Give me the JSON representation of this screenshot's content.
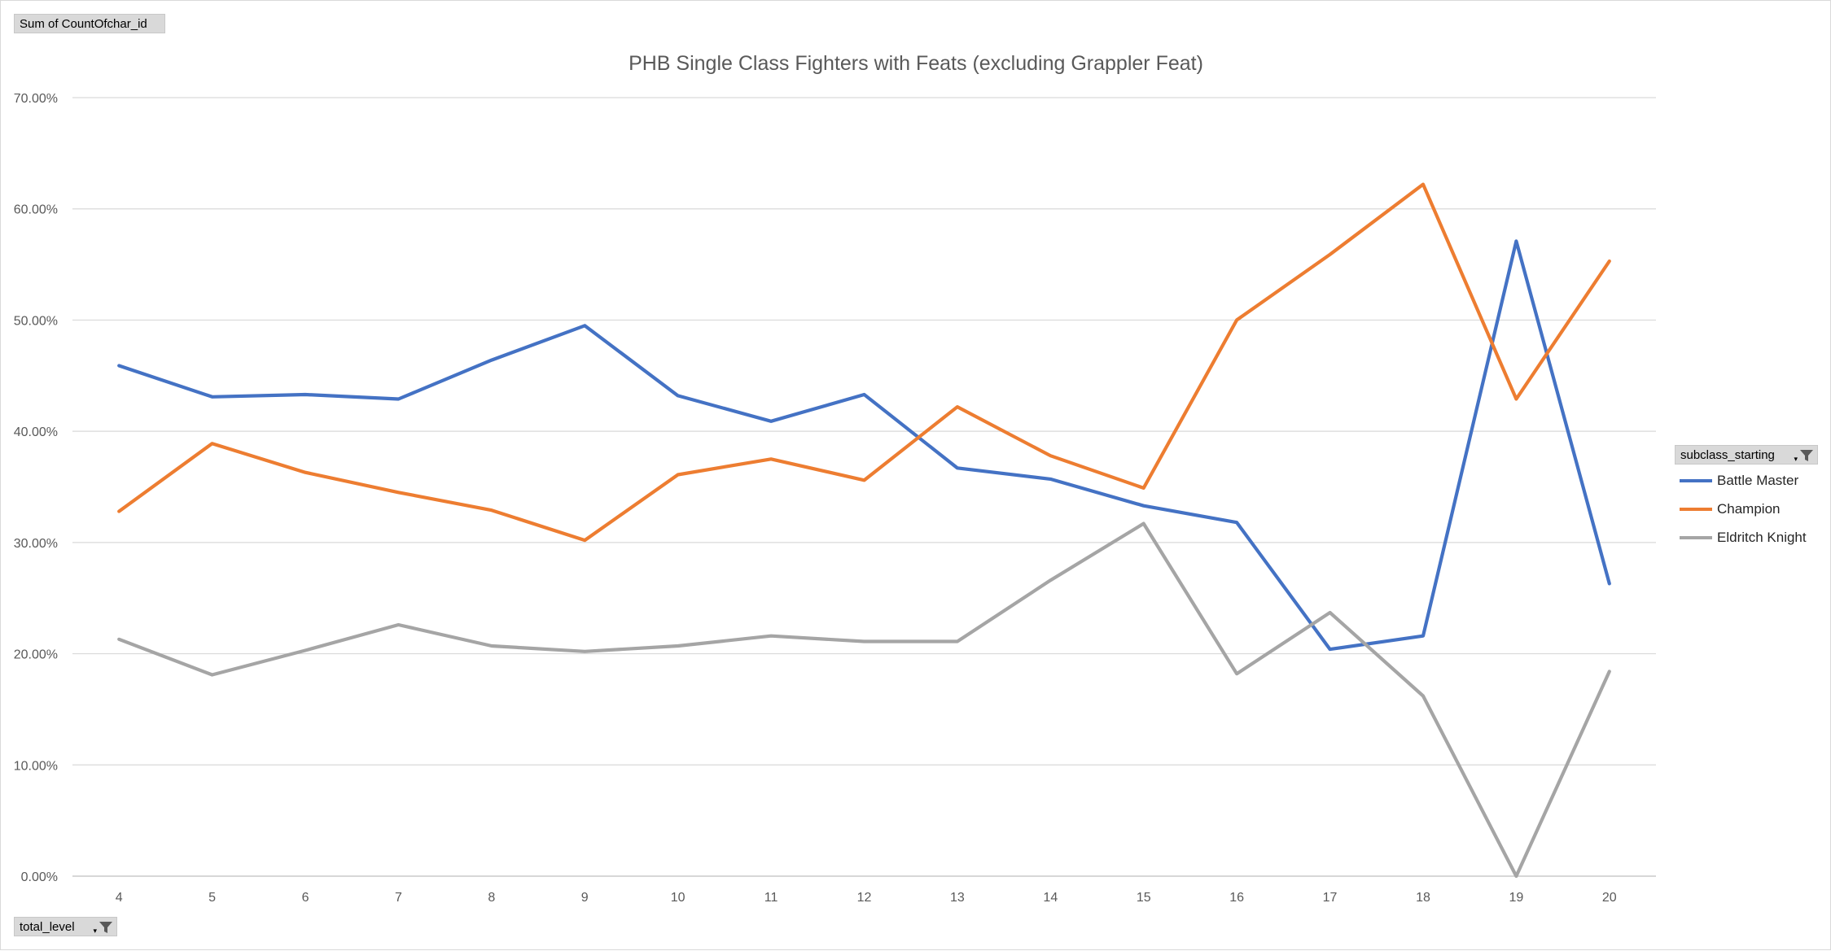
{
  "field_buttons": {
    "values_field": "Sum of CountOfchar_id",
    "axis_field": "total_level",
    "legend_field": "subclass_starting"
  },
  "chart_data": {
    "type": "line",
    "title": "PHB Single Class Fighters with Feats (excluding Grappler Feat)",
    "xlabel": "",
    "ylabel": "",
    "categories": [
      "4",
      "5",
      "6",
      "7",
      "8",
      "9",
      "10",
      "11",
      "12",
      "13",
      "14",
      "15",
      "16",
      "17",
      "18",
      "19",
      "20"
    ],
    "ylim": [
      0,
      70
    ],
    "yticks": [
      0,
      10,
      20,
      30,
      40,
      50,
      60,
      70
    ],
    "ytick_labels": [
      "0.00%",
      "10.00%",
      "20.00%",
      "30.00%",
      "40.00%",
      "50.00%",
      "60.00%",
      "70.00%"
    ],
    "grid": true,
    "legend_position": "right",
    "series": [
      {
        "name": "Battle Master",
        "color": "#4472C4",
        "values": [
          45.9,
          43.1,
          43.3,
          42.9,
          46.4,
          49.5,
          43.2,
          40.9,
          43.3,
          36.7,
          35.7,
          33.3,
          31.8,
          20.4,
          21.6,
          57.1,
          26.3
        ]
      },
      {
        "name": "Champion",
        "color": "#ED7D31",
        "values": [
          32.8,
          38.9,
          36.3,
          34.5,
          32.9,
          30.2,
          36.1,
          37.5,
          35.6,
          42.2,
          37.8,
          34.9,
          50.0,
          55.9,
          62.2,
          42.9,
          55.3
        ]
      },
      {
        "name": "Eldritch Knight",
        "color": "#A5A5A5",
        "values": [
          21.3,
          18.1,
          20.3,
          22.6,
          20.7,
          20.2,
          20.7,
          21.6,
          21.1,
          21.1,
          26.6,
          31.7,
          18.2,
          23.7,
          16.2,
          0.0,
          18.4
        ]
      }
    ]
  }
}
